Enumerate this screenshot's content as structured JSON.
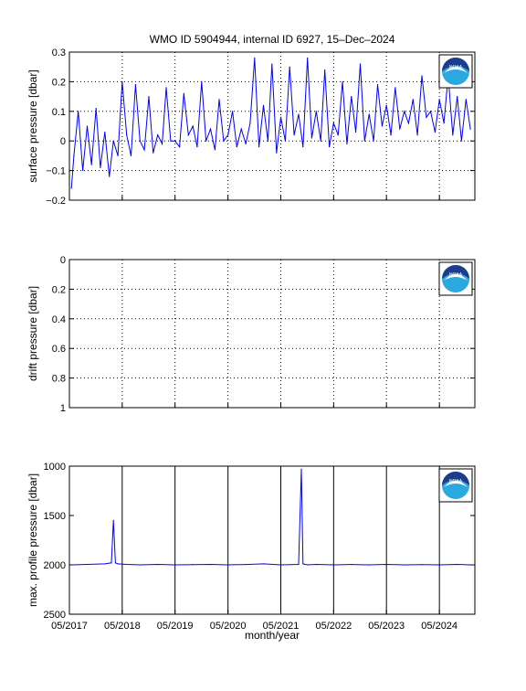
{
  "figure": {
    "title": "WMO ID 5904944, internal ID 6927, 15–Dec–2024",
    "xlabel": "month/year",
    "logo_text": "NOAA"
  },
  "colors": {
    "series": "#0000ff",
    "axes": "#000000",
    "logo_blue": "#1e3c8c",
    "logo_light": "#2aa8e0"
  },
  "x_tick_labels": [
    "05/2017",
    "05/2018",
    "05/2019",
    "05/2020",
    "05/2021",
    "05/2022",
    "05/2023",
    "05/2024"
  ],
  "chart_data": [
    {
      "type": "line",
      "ylabel": "surface pressure [dbar]",
      "ylim": [
        -0.2,
        0.3
      ],
      "yticks": [
        -0.2,
        -0.1,
        0,
        0.1,
        0.2,
        0.3
      ],
      "ytick_labels": [
        "−0.2",
        "−0.1",
        "0",
        "0.1",
        "0.2",
        "0.3"
      ],
      "xlim": [
        "2017-05-01",
        "2025-01-01"
      ],
      "grid": true,
      "x": [
        "2017-05-15",
        "2017-06-01",
        "2017-07-01",
        "2017-08-01",
        "2017-09-01",
        "2017-10-01",
        "2017-11-01",
        "2017-12-01",
        "2018-01-01",
        "2018-02-01",
        "2018-03-01",
        "2018-04-01",
        "2018-05-01",
        "2018-06-01",
        "2018-07-01",
        "2018-08-01",
        "2018-09-01",
        "2018-10-01",
        "2018-11-01",
        "2018-12-01",
        "2019-01-01",
        "2019-02-01",
        "2019-03-01",
        "2019-04-01",
        "2019-05-01",
        "2019-06-01",
        "2019-07-01",
        "2019-08-01",
        "2019-09-01",
        "2019-10-01",
        "2019-11-01",
        "2019-12-01",
        "2020-01-01",
        "2020-02-01",
        "2020-03-01",
        "2020-04-01",
        "2020-05-01",
        "2020-06-01",
        "2020-07-01",
        "2020-08-01",
        "2020-09-01",
        "2020-10-01",
        "2020-11-01",
        "2020-12-01",
        "2021-01-01",
        "2021-02-01",
        "2021-03-01",
        "2021-04-01",
        "2021-05-01",
        "2021-06-01",
        "2021-07-01",
        "2021-08-01",
        "2021-09-01",
        "2021-10-01",
        "2021-11-01",
        "2021-12-01",
        "2022-01-01",
        "2022-02-01",
        "2022-03-01",
        "2022-04-01",
        "2022-05-01",
        "2022-06-01",
        "2022-07-01",
        "2022-08-01",
        "2022-09-01",
        "2022-10-01",
        "2022-11-01",
        "2022-12-01",
        "2023-01-01",
        "2023-02-01",
        "2023-03-01",
        "2023-04-01",
        "2023-05-01",
        "2023-06-01",
        "2023-07-01",
        "2023-08-01",
        "2023-09-01",
        "2023-10-01",
        "2023-11-01",
        "2023-12-01",
        "2024-01-01",
        "2024-02-01",
        "2024-03-01",
        "2024-04-01",
        "2024-05-01",
        "2024-06-01",
        "2024-07-01",
        "2024-08-01",
        "2024-09-01",
        "2024-10-01",
        "2024-11-01",
        "2024-12-01"
      ],
      "y": [
        -0.16,
        -0.05,
        0.1,
        -0.1,
        0.05,
        -0.08,
        0.11,
        -0.09,
        0.03,
        -0.12,
        0.0,
        -0.05,
        0.2,
        0.02,
        -0.05,
        0.19,
        0.0,
        -0.03,
        0.15,
        -0.04,
        0.02,
        -0.01,
        0.18,
        0.0,
        0.0,
        -0.02,
        0.16,
        0.02,
        0.05,
        -0.02,
        0.2,
        0.0,
        0.04,
        -0.03,
        0.14,
        0.0,
        0.02,
        0.1,
        -0.02,
        0.04,
        -0.01,
        0.06,
        0.28,
        -0.02,
        0.12,
        0.0,
        0.26,
        -0.04,
        0.08,
        0.0,
        0.25,
        0.02,
        0.09,
        -0.02,
        0.28,
        0.01,
        0.1,
        0.0,
        0.24,
        -0.02,
        0.06,
        0.02,
        0.2,
        -0.01,
        0.15,
        0.03,
        0.26,
        0.0,
        0.09,
        0.0,
        0.19,
        0.05,
        0.12,
        0.02,
        0.18,
        0.04,
        0.1,
        0.06,
        0.14,
        0.02,
        0.22,
        0.08,
        0.1,
        0.03,
        0.14,
        0.06,
        0.22,
        0.02,
        0.15,
        0.0,
        0.14,
        0.04
      ]
    },
    {
      "type": "line",
      "ylabel": "drift pressure [dbar]",
      "ylim": [
        0,
        1
      ],
      "y_reversed": true,
      "yticks": [
        0,
        0.2,
        0.4,
        0.6,
        0.8,
        1
      ],
      "ytick_labels": [
        "0",
        "0.2",
        "0.4",
        "0.6",
        "0.8",
        "1"
      ],
      "xlim": [
        "2017-05-01",
        "2025-01-01"
      ],
      "grid": true,
      "x": [],
      "y": []
    },
    {
      "type": "line",
      "ylabel": "max. profile pressure [dbar]",
      "ylim": [
        1000,
        2500
      ],
      "y_reversed": true,
      "yticks": [
        1000,
        1500,
        2000,
        2500
      ],
      "ytick_labels": [
        "1000",
        "1500",
        "2000",
        "2500"
      ],
      "xlim": [
        "2017-05-01",
        "2025-01-01"
      ],
      "grid": true,
      "x": [
        "2017-05-15",
        "2017-09-01",
        "2018-01-01",
        "2018-02-15",
        "2018-03-01",
        "2018-03-15",
        "2018-04-01",
        "2018-06-01",
        "2018-09-01",
        "2019-01-01",
        "2019-05-01",
        "2019-09-01",
        "2020-01-01",
        "2020-05-01",
        "2020-09-01",
        "2021-01-01",
        "2021-05-01",
        "2021-09-01",
        "2021-09-20",
        "2021-10-01",
        "2021-10-15",
        "2021-11-01",
        "2022-01-01",
        "2022-05-01",
        "2022-09-01",
        "2023-01-01",
        "2023-05-01",
        "2023-09-01",
        "2024-01-01",
        "2024-05-01",
        "2024-09-01",
        "2024-12-01"
      ],
      "y": [
        2000,
        1995,
        1990,
        1980,
        1550,
        1980,
        1990,
        1995,
        2000,
        1995,
        2000,
        1998,
        1995,
        2000,
        1996,
        1990,
        2000,
        1995,
        1030,
        1990,
        1995,
        2000,
        1995,
        2000,
        1996,
        2000,
        1995,
        2000,
        1998,
        2000,
        1995,
        2000
      ]
    }
  ]
}
